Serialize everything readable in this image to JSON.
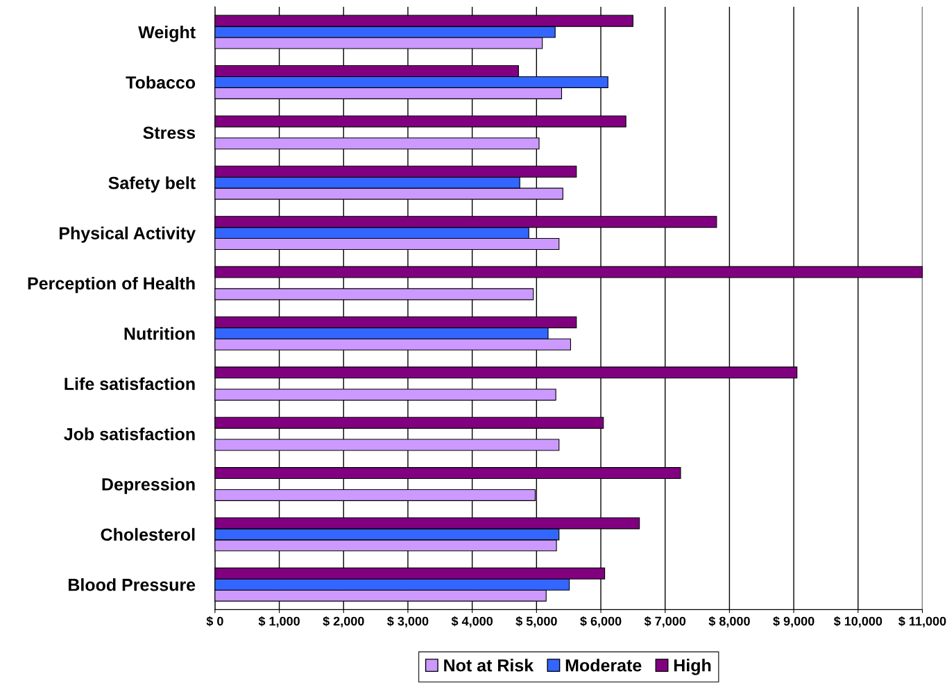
{
  "chart_data": {
    "type": "bar",
    "orientation": "horizontal",
    "categories": [
      "Weight",
      "Tobacco",
      "Stress",
      "Safety belt",
      "Physical Activity",
      "Perception of Health",
      "Nutrition",
      "Life satisfaction",
      "Job satisfaction",
      "Depression",
      "Cholesterol",
      "Blood Pressure"
    ],
    "series": [
      {
        "name": "Not at Risk",
        "color": "#cc99ff",
        "values": [
          5090,
          5390,
          5040,
          5410,
          5350,
          4950,
          5530,
          5300,
          5350,
          4980,
          5310,
          5150
        ]
      },
      {
        "name": "Moderate",
        "color": "#3366ff",
        "values": [
          5290,
          6110,
          null,
          4740,
          4880,
          null,
          5180,
          null,
          null,
          null,
          5350,
          5510
        ]
      },
      {
        "name": "High",
        "color": "#800080",
        "values": [
          6500,
          4720,
          6390,
          5620,
          7800,
          11000,
          5620,
          9050,
          6040,
          7240,
          6600,
          6060
        ]
      }
    ],
    "xlim": [
      0,
      11000
    ],
    "xticks": [
      {
        "value": 0,
        "label": "$ 0"
      },
      {
        "value": 1000,
        "label": "$ 1,000"
      },
      {
        "value": 2000,
        "label": "$ 2,000"
      },
      {
        "value": 3000,
        "label": "$ 3,000"
      },
      {
        "value": 4000,
        "label": "$ 4,000"
      },
      {
        "value": 5000,
        "label": "$ 5,000"
      },
      {
        "value": 6000,
        "label": "$ 6,000"
      },
      {
        "value": 7000,
        "label": "$ 7,000"
      },
      {
        "value": 8000,
        "label": "$ 8,000"
      },
      {
        "value": 9000,
        "label": "$ 9,000"
      },
      {
        "value": 10000,
        "label": "$ 10,000"
      },
      {
        "value": 11000,
        "label": "$ 11,000"
      }
    ],
    "grid": "x",
    "legend": "bottom"
  }
}
